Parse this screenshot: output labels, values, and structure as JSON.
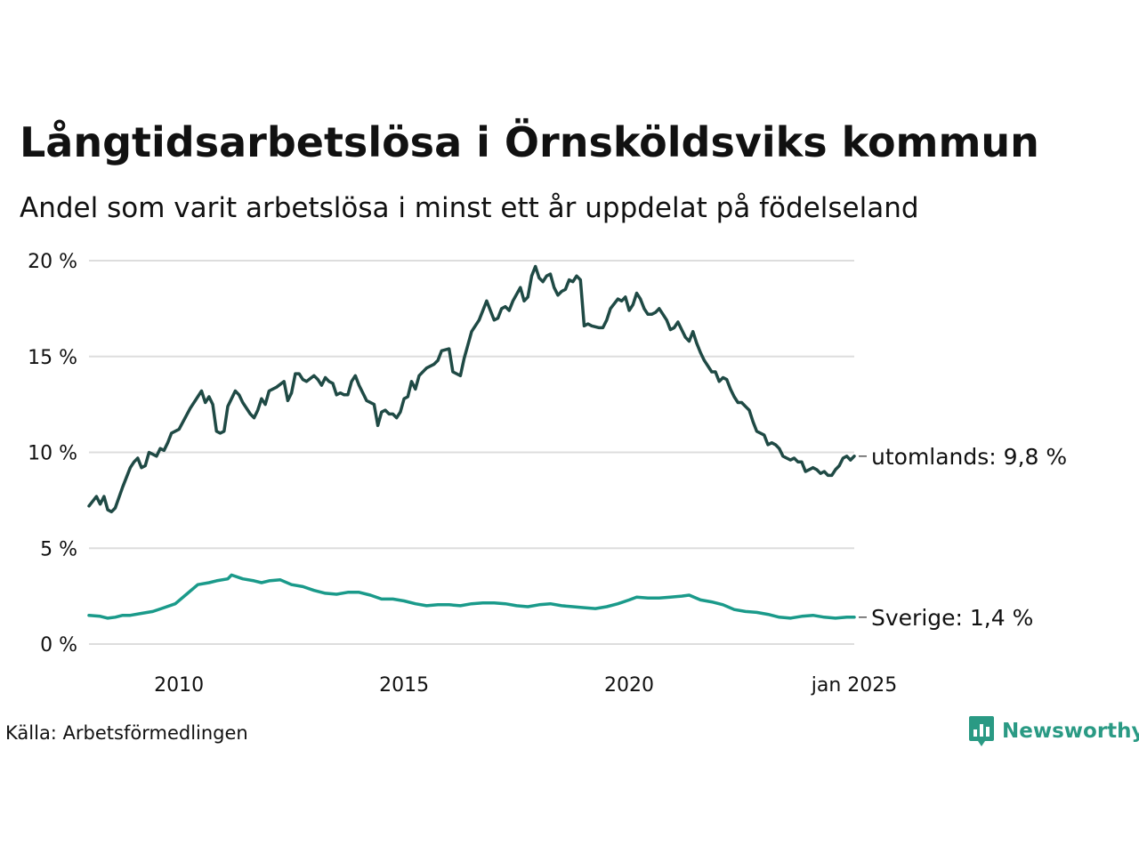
{
  "title": "Långtidsarbetslösa i Örnsköldsviks kommun",
  "subtitle": "Andel som varit arbetslösa i minst ett år uppdelat på födelseland",
  "source": "Källa: Arbetsförmedlingen",
  "brand": {
    "name": "Newsworthy",
    "color": "#2a9a84",
    "icon": "bar-chart-speech-bubble-icon"
  },
  "colors": {
    "utomlands": "#1f4a45",
    "sverige": "#1a9a8a",
    "grid": "#dddddd"
  },
  "chart_data": {
    "type": "line",
    "title": "Långtidsarbetslösa i Örnsköldsviks kommun",
    "subtitle": "Andel som varit arbetslösa i minst ett år uppdelat på födelseland",
    "xlim": [
      "2008-01",
      "2025-01"
    ],
    "ylim": [
      0,
      20
    ],
    "yticks": [
      0,
      5,
      10,
      15,
      20
    ],
    "ytick_labels": [
      "0 %",
      "5 %",
      "10 %",
      "15 %",
      "20 %"
    ],
    "xticks": [
      "2010-01",
      "2015-01",
      "2020-01",
      "2025-01"
    ],
    "xtick_labels": [
      "2010",
      "2015",
      "2020",
      "jan 2025"
    ],
    "grid": "horizontal",
    "legend": "direct labels at line ends",
    "series": [
      {
        "name": "utomlands",
        "end_label": "utomlands: 9,8 %",
        "points": [
          [
            "2008-01",
            7.2
          ],
          [
            "2008-03",
            7.7
          ],
          [
            "2008-04",
            7.3
          ],
          [
            "2008-05",
            7.7
          ],
          [
            "2008-06",
            7.0
          ],
          [
            "2008-07",
            6.9
          ],
          [
            "2008-08",
            7.1
          ],
          [
            "2008-10",
            8.2
          ],
          [
            "2008-12",
            9.2
          ],
          [
            "2009-01",
            9.5
          ],
          [
            "2009-02",
            9.7
          ],
          [
            "2009-03",
            9.2
          ],
          [
            "2009-04",
            9.3
          ],
          [
            "2009-05",
            10.0
          ],
          [
            "2009-07",
            9.8
          ],
          [
            "2009-08",
            10.2
          ],
          [
            "2009-09",
            10.1
          ],
          [
            "2009-10",
            10.5
          ],
          [
            "2009-11",
            11.0
          ],
          [
            "2010-01",
            11.2
          ],
          [
            "2010-04",
            12.3
          ],
          [
            "2010-07",
            13.2
          ],
          [
            "2010-08",
            12.6
          ],
          [
            "2010-09",
            12.9
          ],
          [
            "2010-10",
            12.5
          ],
          [
            "2010-11",
            11.1
          ],
          [
            "2010-12",
            11.0
          ],
          [
            "2011-01",
            11.1
          ],
          [
            "2011-02",
            12.4
          ],
          [
            "2011-04",
            13.2
          ],
          [
            "2011-05",
            13.0
          ],
          [
            "2011-06",
            12.6
          ],
          [
            "2011-08",
            12.0
          ],
          [
            "2011-09",
            11.8
          ],
          [
            "2011-10",
            12.2
          ],
          [
            "2011-11",
            12.8
          ],
          [
            "2011-12",
            12.5
          ],
          [
            "2012-01",
            13.2
          ],
          [
            "2012-03",
            13.4
          ],
          [
            "2012-05",
            13.7
          ],
          [
            "2012-06",
            12.7
          ],
          [
            "2012-07",
            13.1
          ],
          [
            "2012-08",
            14.1
          ],
          [
            "2012-09",
            14.1
          ],
          [
            "2012-10",
            13.8
          ],
          [
            "2012-11",
            13.7
          ],
          [
            "2013-01",
            14.0
          ],
          [
            "2013-02",
            13.8
          ],
          [
            "2013-03",
            13.5
          ],
          [
            "2013-04",
            13.9
          ],
          [
            "2013-05",
            13.7
          ],
          [
            "2013-06",
            13.6
          ],
          [
            "2013-07",
            13.0
          ],
          [
            "2013-08",
            13.1
          ],
          [
            "2013-09",
            13.0
          ],
          [
            "2013-10",
            13.0
          ],
          [
            "2013-11",
            13.7
          ],
          [
            "2013-12",
            14.0
          ],
          [
            "2014-01",
            13.5
          ],
          [
            "2014-03",
            12.7
          ],
          [
            "2014-05",
            12.5
          ],
          [
            "2014-06",
            11.4
          ],
          [
            "2014-07",
            12.1
          ],
          [
            "2014-08",
            12.2
          ],
          [
            "2014-09",
            12.0
          ],
          [
            "2014-10",
            12.0
          ],
          [
            "2014-11",
            11.8
          ],
          [
            "2014-12",
            12.1
          ],
          [
            "2015-01",
            12.8
          ],
          [
            "2015-02",
            12.9
          ],
          [
            "2015-03",
            13.7
          ],
          [
            "2015-04",
            13.3
          ],
          [
            "2015-05",
            14.0
          ],
          [
            "2015-07",
            14.4
          ],
          [
            "2015-09",
            14.6
          ],
          [
            "2015-10",
            14.8
          ],
          [
            "2015-11",
            15.3
          ],
          [
            "2016-01",
            15.4
          ],
          [
            "2016-02",
            14.2
          ],
          [
            "2016-04",
            14.0
          ],
          [
            "2016-05",
            14.9
          ],
          [
            "2016-06",
            15.6
          ],
          [
            "2016-07",
            16.3
          ],
          [
            "2016-09",
            16.9
          ],
          [
            "2016-11",
            17.9
          ],
          [
            "2017-01",
            16.9
          ],
          [
            "2017-02",
            17.0
          ],
          [
            "2017-03",
            17.5
          ],
          [
            "2017-04",
            17.6
          ],
          [
            "2017-05",
            17.4
          ],
          [
            "2017-06",
            17.9
          ],
          [
            "2017-08",
            18.6
          ],
          [
            "2017-09",
            17.9
          ],
          [
            "2017-10",
            18.1
          ],
          [
            "2017-11",
            19.2
          ],
          [
            "2017-12",
            19.7
          ],
          [
            "2018-01",
            19.1
          ],
          [
            "2018-02",
            18.9
          ],
          [
            "2018-03",
            19.2
          ],
          [
            "2018-04",
            19.3
          ],
          [
            "2018-05",
            18.6
          ],
          [
            "2018-06",
            18.2
          ],
          [
            "2018-07",
            18.4
          ],
          [
            "2018-08",
            18.5
          ],
          [
            "2018-09",
            19.0
          ],
          [
            "2018-10",
            18.9
          ],
          [
            "2018-11",
            19.2
          ],
          [
            "2018-12",
            19.0
          ],
          [
            "2019-01",
            16.6
          ],
          [
            "2019-02",
            16.7
          ],
          [
            "2019-03",
            16.6
          ],
          [
            "2019-05",
            16.5
          ],
          [
            "2019-06",
            16.5
          ],
          [
            "2019-07",
            16.9
          ],
          [
            "2019-08",
            17.5
          ],
          [
            "2019-10",
            18.0
          ],
          [
            "2019-11",
            17.9
          ],
          [
            "2019-12",
            18.1
          ],
          [
            "2020-01",
            17.4
          ],
          [
            "2020-02",
            17.7
          ],
          [
            "2020-03",
            18.3
          ],
          [
            "2020-04",
            18.0
          ],
          [
            "2020-05",
            17.5
          ],
          [
            "2020-06",
            17.2
          ],
          [
            "2020-07",
            17.2
          ],
          [
            "2020-08",
            17.3
          ],
          [
            "2020-09",
            17.5
          ],
          [
            "2020-10",
            17.2
          ],
          [
            "2020-11",
            16.9
          ],
          [
            "2020-12",
            16.4
          ],
          [
            "2021-01",
            16.5
          ],
          [
            "2021-02",
            16.8
          ],
          [
            "2021-03",
            16.4
          ],
          [
            "2021-04",
            16.0
          ],
          [
            "2021-05",
            15.8
          ],
          [
            "2021-06",
            16.3
          ],
          [
            "2021-07",
            15.7
          ],
          [
            "2021-08",
            15.2
          ],
          [
            "2021-09",
            14.8
          ],
          [
            "2021-10",
            14.5
          ],
          [
            "2021-11",
            14.2
          ],
          [
            "2021-12",
            14.2
          ],
          [
            "2022-01",
            13.7
          ],
          [
            "2022-02",
            13.9
          ],
          [
            "2022-03",
            13.8
          ],
          [
            "2022-04",
            13.3
          ],
          [
            "2022-05",
            12.9
          ],
          [
            "2022-06",
            12.6
          ],
          [
            "2022-07",
            12.6
          ],
          [
            "2022-08",
            12.4
          ],
          [
            "2022-09",
            12.2
          ],
          [
            "2022-10",
            11.6
          ],
          [
            "2022-11",
            11.1
          ],
          [
            "2022-12",
            11.0
          ],
          [
            "2023-01",
            10.9
          ],
          [
            "2023-02",
            10.4
          ],
          [
            "2023-03",
            10.5
          ],
          [
            "2023-04",
            10.4
          ],
          [
            "2023-05",
            10.2
          ],
          [
            "2023-06",
            9.8
          ],
          [
            "2023-07",
            9.7
          ],
          [
            "2023-08",
            9.6
          ],
          [
            "2023-09",
            9.7
          ],
          [
            "2023-10",
            9.5
          ],
          [
            "2023-11",
            9.5
          ],
          [
            "2023-12",
            9.0
          ],
          [
            "2024-01",
            9.1
          ],
          [
            "2024-02",
            9.2
          ],
          [
            "2024-03",
            9.1
          ],
          [
            "2024-04",
            8.9
          ],
          [
            "2024-05",
            9.0
          ],
          [
            "2024-06",
            8.8
          ],
          [
            "2024-07",
            8.8
          ],
          [
            "2024-08",
            9.1
          ],
          [
            "2024-09",
            9.3
          ],
          [
            "2024-10",
            9.7
          ],
          [
            "2024-11",
            9.8
          ],
          [
            "2024-12",
            9.6
          ],
          [
            "2025-01",
            9.8
          ]
        ]
      },
      {
        "name": "Sverige",
        "end_label": "Sverige: 1,4 %",
        "points": [
          [
            "2008-01",
            1.5
          ],
          [
            "2008-04",
            1.45
          ],
          [
            "2008-06",
            1.35
          ],
          [
            "2008-08",
            1.4
          ],
          [
            "2008-10",
            1.5
          ],
          [
            "2008-12",
            1.5
          ],
          [
            "2009-03",
            1.6
          ],
          [
            "2009-06",
            1.7
          ],
          [
            "2009-09",
            1.9
          ],
          [
            "2009-12",
            2.1
          ],
          [
            "2010-03",
            2.6
          ],
          [
            "2010-06",
            3.1
          ],
          [
            "2010-09",
            3.2
          ],
          [
            "2010-11",
            3.3
          ],
          [
            "2011-02",
            3.4
          ],
          [
            "2011-03",
            3.6
          ],
          [
            "2011-06",
            3.4
          ],
          [
            "2011-09",
            3.3
          ],
          [
            "2011-11",
            3.2
          ],
          [
            "2012-01",
            3.3
          ],
          [
            "2012-04",
            3.35
          ],
          [
            "2012-07",
            3.1
          ],
          [
            "2012-10",
            3.0
          ],
          [
            "2013-01",
            2.8
          ],
          [
            "2013-04",
            2.65
          ],
          [
            "2013-07",
            2.6
          ],
          [
            "2013-10",
            2.7
          ],
          [
            "2014-01",
            2.7
          ],
          [
            "2014-04",
            2.55
          ],
          [
            "2014-07",
            2.35
          ],
          [
            "2014-10",
            2.35
          ],
          [
            "2015-01",
            2.25
          ],
          [
            "2015-04",
            2.1
          ],
          [
            "2015-07",
            2.0
          ],
          [
            "2015-10",
            2.05
          ],
          [
            "2016-01",
            2.05
          ],
          [
            "2016-04",
            2.0
          ],
          [
            "2016-07",
            2.1
          ],
          [
            "2016-10",
            2.15
          ],
          [
            "2017-01",
            2.15
          ],
          [
            "2017-04",
            2.1
          ],
          [
            "2017-07",
            2.0
          ],
          [
            "2017-10",
            1.95
          ],
          [
            "2018-01",
            2.05
          ],
          [
            "2018-04",
            2.1
          ],
          [
            "2018-07",
            2.0
          ],
          [
            "2018-10",
            1.95
          ],
          [
            "2019-01",
            1.9
          ],
          [
            "2019-04",
            1.85
          ],
          [
            "2019-07",
            1.95
          ],
          [
            "2019-10",
            2.1
          ],
          [
            "2020-01",
            2.3
          ],
          [
            "2020-03",
            2.45
          ],
          [
            "2020-06",
            2.4
          ],
          [
            "2020-09",
            2.4
          ],
          [
            "2020-12",
            2.45
          ],
          [
            "2021-03",
            2.5
          ],
          [
            "2021-05",
            2.55
          ],
          [
            "2021-08",
            2.3
          ],
          [
            "2021-11",
            2.2
          ],
          [
            "2022-02",
            2.05
          ],
          [
            "2022-05",
            1.8
          ],
          [
            "2022-08",
            1.7
          ],
          [
            "2022-11",
            1.65
          ],
          [
            "2023-02",
            1.55
          ],
          [
            "2023-05",
            1.4
          ],
          [
            "2023-08",
            1.35
          ],
          [
            "2023-11",
            1.45
          ],
          [
            "2024-02",
            1.5
          ],
          [
            "2024-05",
            1.4
          ],
          [
            "2024-08",
            1.35
          ],
          [
            "2024-11",
            1.4
          ],
          [
            "2025-01",
            1.4
          ]
        ]
      }
    ]
  }
}
